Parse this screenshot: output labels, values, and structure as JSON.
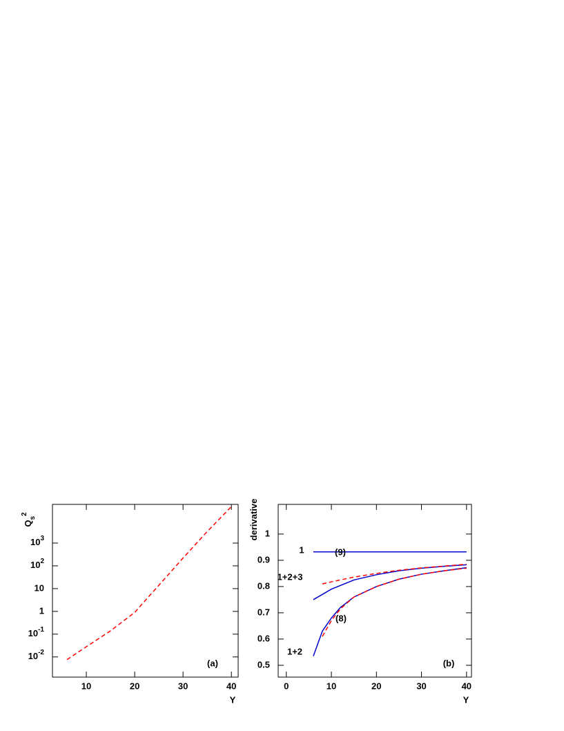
{
  "chart_data": [
    {
      "type": "line",
      "log_y": true,
      "xlabel": "Y",
      "ylabel": {
        "text": "Q",
        "sub": "s",
        "sup": "2"
      },
      "xlim": [
        3,
        41.4
      ],
      "ylim": [
        0.0013,
        50000
      ],
      "xticks": [
        10,
        20,
        30,
        40
      ],
      "yticks": [
        {
          "value": 0.01,
          "label": "10",
          "sup": "-2"
        },
        {
          "value": 0.1,
          "label": "10",
          "sup": "-1"
        },
        1,
        10,
        {
          "value": 100,
          "label": "10",
          "sup": "2"
        },
        {
          "value": 1000,
          "label": "10",
          "sup": "3"
        }
      ],
      "series": [
        {
          "color": "#ff0000",
          "dash": true,
          "x": [
            6,
            10,
            15,
            20,
            25,
            30,
            35,
            40
          ],
          "values": [
            0.0076,
            0.028,
            0.14,
            0.9,
            14,
            220,
            3200,
            40000
          ]
        }
      ],
      "annotations": [
        "(a)"
      ]
    },
    {
      "type": "line",
      "log_y": false,
      "xlabel": "Y",
      "ylabel": {
        "text": "derivative"
      },
      "xlim": [
        -1.8,
        41.1
      ],
      "ylim": [
        0.455,
        1.113
      ],
      "xticks": [
        0,
        10,
        20,
        30,
        40
      ],
      "yticks": [
        0.5,
        0.6,
        0.7,
        0.8,
        0.9,
        1
      ],
      "series": [
        {
          "color": "#0000cc",
          "dash": false,
          "x": [
            6,
            40
          ],
          "values": [
            0.932,
            0.932
          ]
        },
        {
          "color": "#0000cc",
          "dash": false,
          "x": [
            6,
            10,
            15,
            20,
            25,
            30,
            35,
            40
          ],
          "values": [
            0.75,
            0.79,
            0.825,
            0.845,
            0.86,
            0.87,
            0.877,
            0.883
          ]
        },
        {
          "color": "#ff0000",
          "dash": true,
          "x": [
            8,
            10,
            15,
            20,
            25,
            30,
            35,
            40
          ],
          "values": [
            0.81,
            0.818,
            0.836,
            0.85,
            0.862,
            0.871,
            0.878,
            0.885
          ]
        },
        {
          "color": "#0000cc",
          "dash": false,
          "x": [
            6,
            8,
            10,
            12,
            15,
            20,
            25,
            30,
            35,
            40
          ],
          "values": [
            0.535,
            0.63,
            0.68,
            0.72,
            0.76,
            0.8,
            0.828,
            0.847,
            0.86,
            0.872
          ]
        },
        {
          "color": "#ff0000",
          "dash": true,
          "x": [
            8,
            10,
            12,
            15,
            20,
            25,
            30,
            35,
            40
          ],
          "values": [
            0.61,
            0.67,
            0.715,
            0.76,
            0.8,
            0.828,
            0.847,
            0.86,
            0.87
          ]
        }
      ],
      "annotations": [
        "1",
        "(9)",
        "1+2+3",
        "(8)",
        "1+2",
        "(b)"
      ]
    }
  ]
}
